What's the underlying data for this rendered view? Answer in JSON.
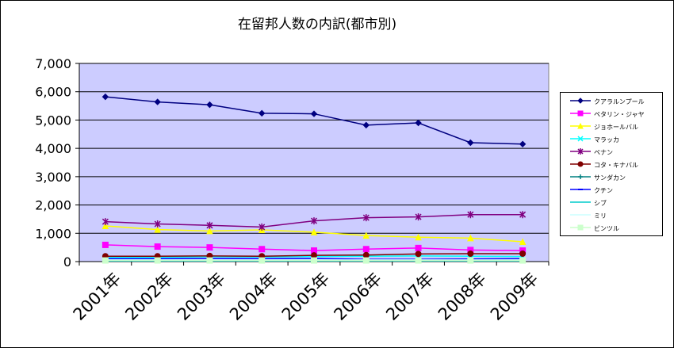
{
  "chart_data": {
    "type": "line",
    "title": "在留邦人数の内訳(都市別)",
    "xlabel": "",
    "ylabel": "",
    "categories": [
      "2001年",
      "2002年",
      "2003年",
      "2004年",
      "2005年",
      "2006年",
      "2007年",
      "2008年",
      "2009年"
    ],
    "ylim": [
      0,
      7000
    ],
    "yticks": [
      0,
      1000,
      2000,
      3000,
      4000,
      5000,
      6000,
      7000
    ],
    "ytick_labels": [
      "0",
      "1,000",
      "2,000",
      "3,000",
      "4,000",
      "5,000",
      "6,000",
      "7,000"
    ],
    "grid": true,
    "plot_background": "#ccccff",
    "legend_position": "right",
    "series": [
      {
        "name": "クアラルンプール",
        "color": "#000080",
        "marker": "diamond",
        "values": [
          5820,
          5640,
          5540,
          5240,
          5220,
          4820,
          4900,
          4200,
          4150
        ]
      },
      {
        "name": "ペタリン・ジャヤ",
        "color": "#ff00ff",
        "marker": "square",
        "values": [
          590,
          530,
          500,
          440,
          390,
          440,
          480,
          410,
          390
        ]
      },
      {
        "name": "ジョホールバル",
        "color": "#ffff00",
        "marker": "triangle",
        "values": [
          1260,
          1130,
          1080,
          1120,
          1040,
          920,
          860,
          830,
          700
        ]
      },
      {
        "name": "マラッカ",
        "color": "#00ffff",
        "marker": "x",
        "values": [
          150,
          150,
          170,
          160,
          180,
          190,
          200,
          190,
          180
        ]
      },
      {
        "name": "ペナン",
        "color": "#800080",
        "marker": "star",
        "values": [
          1410,
          1330,
          1280,
          1220,
          1440,
          1550,
          1580,
          1660,
          1660
        ]
      },
      {
        "name": "コタ・キナバル",
        "color": "#800000",
        "marker": "circle",
        "values": [
          190,
          190,
          200,
          190,
          220,
          230,
          270,
          280,
          280
        ]
      },
      {
        "name": "サンダカン",
        "color": "#008080",
        "marker": "plus",
        "values": [
          30,
          30,
          30,
          30,
          30,
          30,
          30,
          30,
          30
        ]
      },
      {
        "name": "クチン",
        "color": "#0000ff",
        "marker": "dash",
        "values": [
          100,
          100,
          110,
          100,
          110,
          80,
          80,
          90,
          100
        ]
      },
      {
        "name": "シブ",
        "color": "#00cccc",
        "marker": "none",
        "values": [
          20,
          20,
          20,
          20,
          20,
          20,
          20,
          20,
          20
        ]
      },
      {
        "name": "ミリ",
        "color": "#ccffff",
        "marker": "none",
        "values": [
          60,
          60,
          60,
          60,
          60,
          60,
          60,
          60,
          60
        ]
      },
      {
        "name": "ビンツル",
        "color": "#ccffcc",
        "marker": "square",
        "values": [
          40,
          40,
          40,
          40,
          40,
          40,
          40,
          40,
          40
        ]
      }
    ]
  }
}
